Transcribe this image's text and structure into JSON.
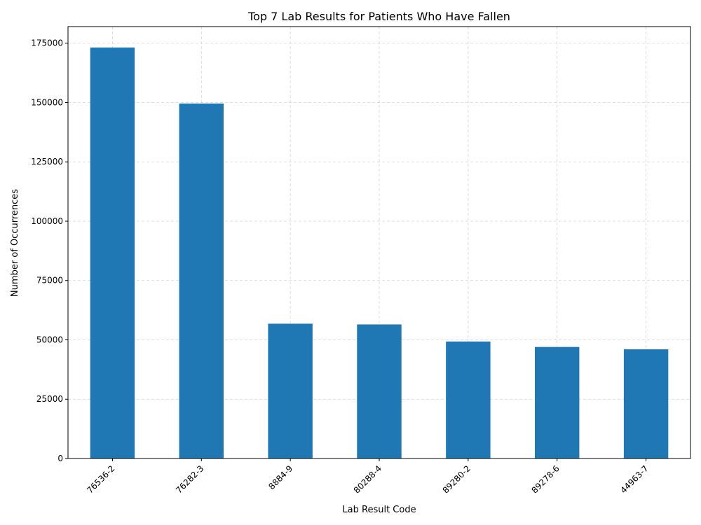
{
  "chart_data": {
    "type": "bar",
    "title": "Top 7 Lab Results for Patients Who Have Fallen",
    "xlabel": "Lab Result Code",
    "ylabel": "Number of Occurrences",
    "categories": [
      "76536-2",
      "76282-3",
      "8884-9",
      "80288-4",
      "89280-2",
      "89278-6",
      "44963-7"
    ],
    "values": [
      173200,
      149600,
      56800,
      56500,
      49300,
      47000,
      46000
    ],
    "ylim": [
      0,
      182000
    ],
    "yticks": [
      0,
      25000,
      50000,
      75000,
      100000,
      125000,
      150000,
      175000
    ],
    "grid": true,
    "bar_color": "#1f77b4",
    "xtick_rotation": -45
  }
}
